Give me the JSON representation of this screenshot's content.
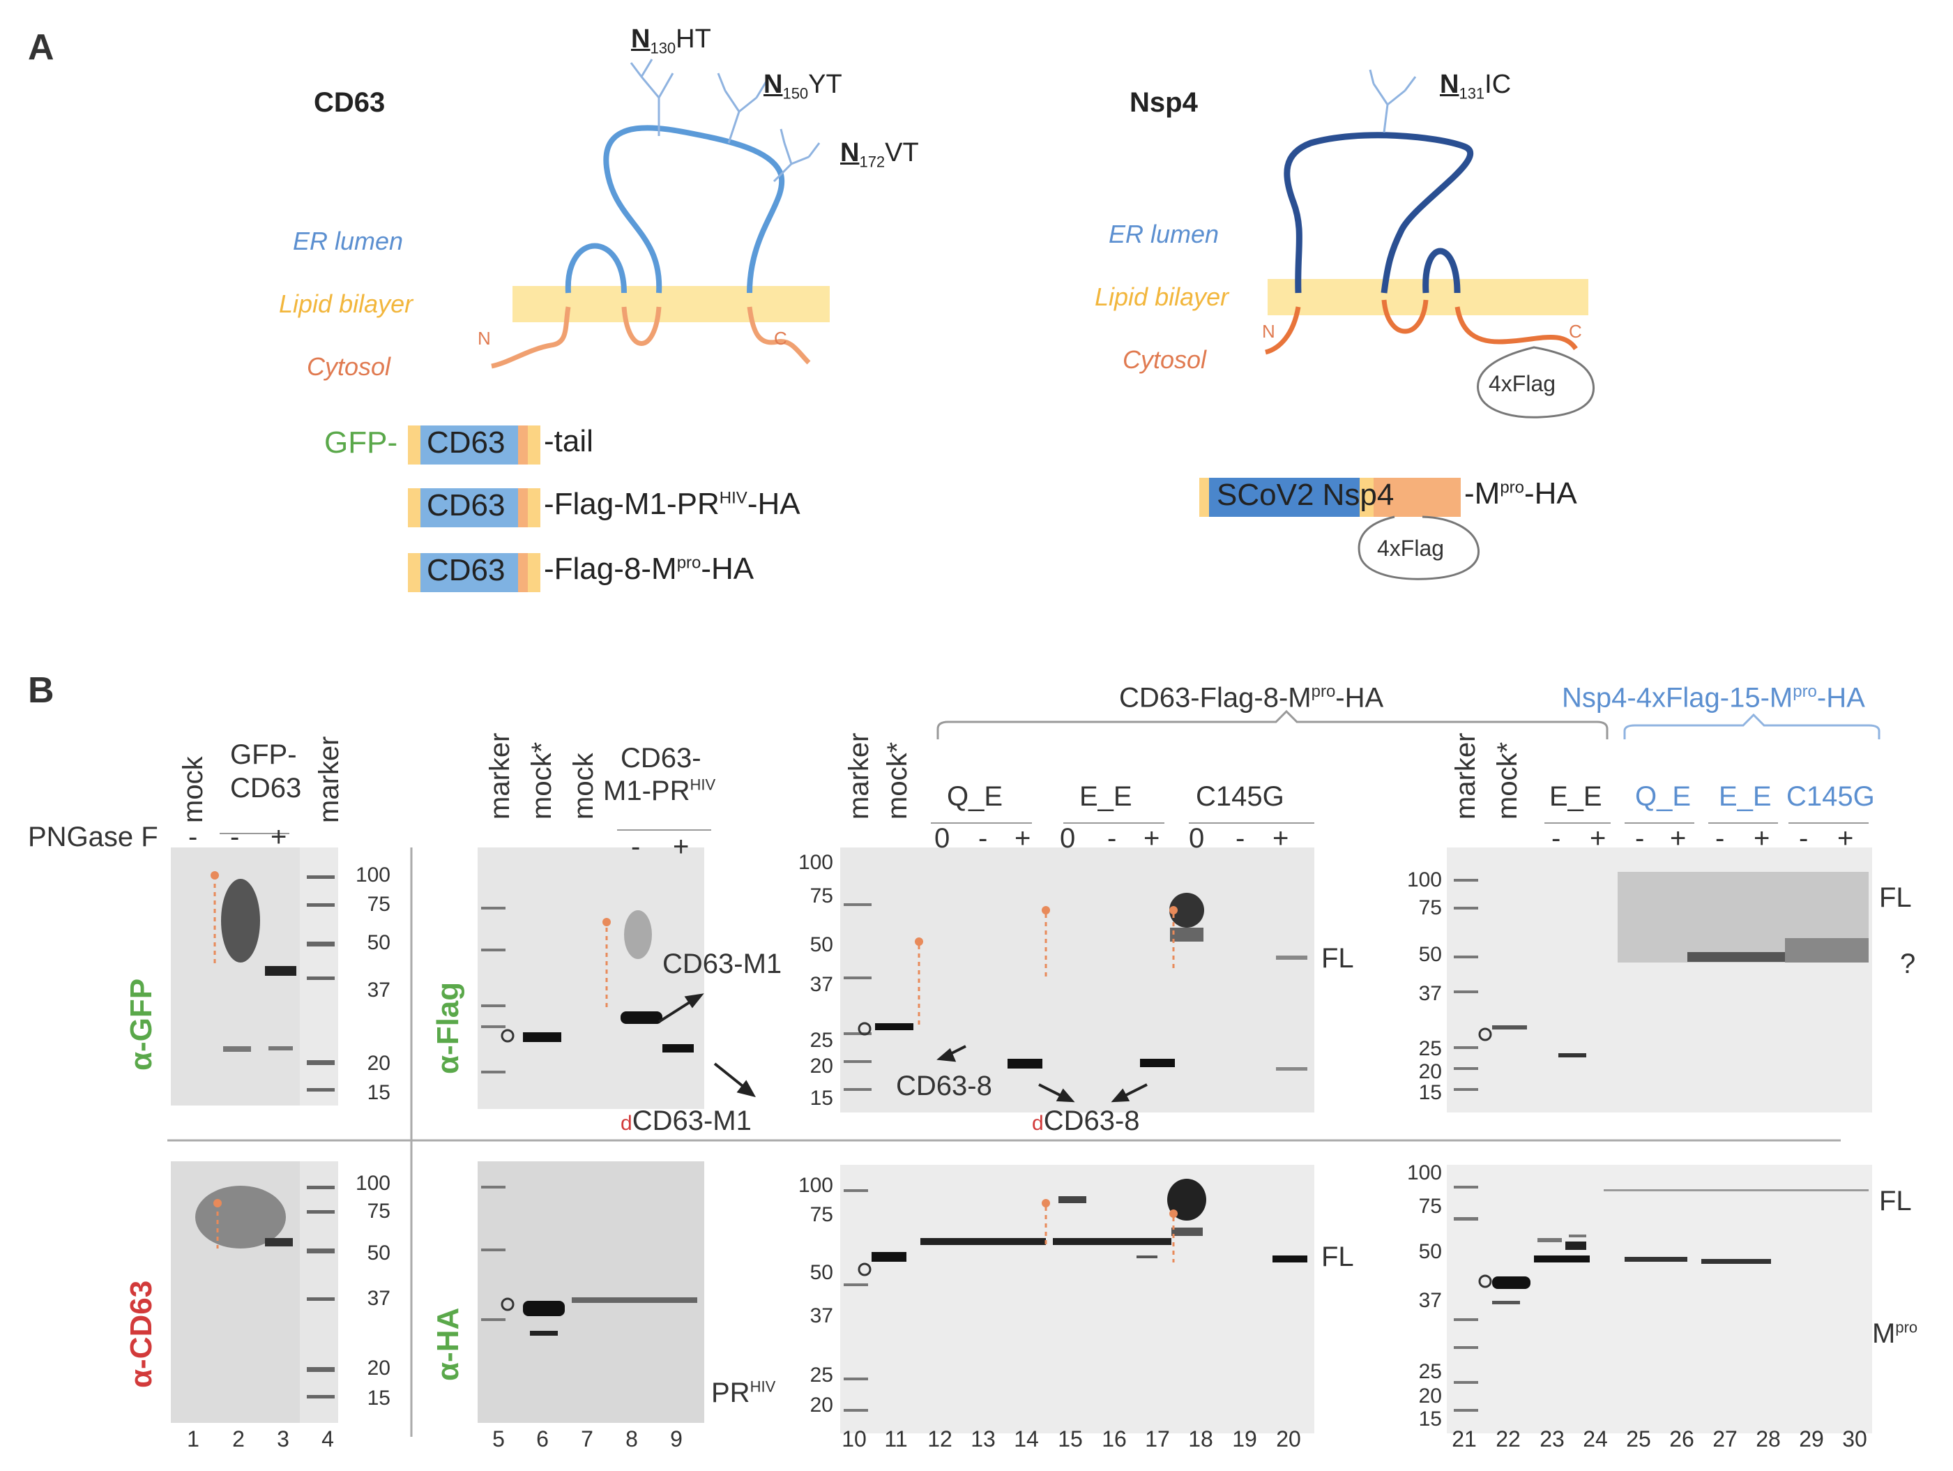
{
  "panel_a": {
    "letter": "A",
    "cd63": {
      "name": "CD63",
      "glyc1": {
        "aa": "N",
        "pos": "130",
        "rest": "HT"
      },
      "glyc2": {
        "aa": "N",
        "pos": "150",
        "rest": "YT"
      },
      "glyc3": {
        "aa": "N",
        "pos": "172",
        "rest": "VT"
      },
      "er_lumen": "ER lumen",
      "lipid": "Lipid bilayer",
      "cytosol": "Cytosol",
      "n_term": "N",
      "c_term": "C"
    },
    "nsp4": {
      "name": "Nsp4",
      "glyc1": {
        "aa": "N",
        "pos": "131",
        "rest": "IC"
      },
      "er_lumen": "ER lumen",
      "lipid": "Lipid bilayer",
      "cytosol": "Cytosol",
      "n_term": "N",
      "c_term": "C",
      "flag_tag": "4xFlag"
    },
    "constructs": {
      "c1_prefix": "GFP-",
      "c1_box": "CD63",
      "c1_suffix": "-tail",
      "c2_box": "CD63",
      "c2_suffix_a": "-Flag-M1-PR",
      "c2_sup": "HIV",
      "c2_suffix_b": "-HA",
      "c3_box": "CD63",
      "c3_suffix_a": "-Flag-8-M",
      "c3_sup": "pro",
      "c3_suffix_b": "-HA",
      "c4_box": "SCoV2 Nsp4",
      "c4_suffix_a": "-M",
      "c4_sup": "pro",
      "c4_suffix_b": "-HA",
      "c4_flag": "4xFlag"
    }
  },
  "panel_b": {
    "letter": "B",
    "pngase": "PNGase F",
    "group_cd63": {
      "a": "CD63-Flag-8-M",
      "sup": "pro",
      "b": "-HA"
    },
    "group_nsp4": {
      "a": "Nsp4-4xFlag-15-M",
      "sup": "pro",
      "b": "-HA"
    },
    "blot1": {
      "lanes": [
        "mock",
        "GFP-\nCD63",
        "marker"
      ],
      "signs": [
        "-",
        "-",
        "+"
      ],
      "mw_top": [
        "100",
        "75",
        "50",
        "37",
        "20",
        "15"
      ],
      "mw_bottom": [
        "100",
        "75",
        "50",
        "37",
        "20",
        "15"
      ],
      "ab_top": "α-GFP",
      "ab_bottom": "α-CD63",
      "lane_nums": [
        "1",
        "2",
        "3",
        "4"
      ]
    },
    "blot2": {
      "lanes": [
        "marker",
        "mock*",
        "mock"
      ],
      "group": "CD63-",
      "group2": "M1-PR",
      "group2_sup": "HIV",
      "signs": [
        "-",
        "+"
      ],
      "ab_top": "α-Flag",
      "ab_bottom": "α-HA",
      "band_a": "CD63-M1",
      "band_b_prefix": "d",
      "band_b": "CD63-M1",
      "band_pr": "PR",
      "band_pr_sup": "HIV",
      "lane_nums": [
        "5",
        "6",
        "7",
        "8",
        "9"
      ]
    },
    "blot3": {
      "lanes": [
        "marker",
        "mock*"
      ],
      "groups": [
        "Q_E",
        "E_E",
        "C145G"
      ],
      "signs": [
        "0",
        "-",
        "+",
        "0",
        "-",
        "+",
        "0",
        "-",
        "+"
      ],
      "mw_top": [
        "100",
        "75",
        "50",
        "37",
        "25",
        "20",
        "15"
      ],
      "mw_bottom": [
        "100",
        "75",
        "50",
        "37",
        "25",
        "20"
      ],
      "fl": "FL",
      "band_cd638": "CD63-8",
      "band_d_prefix": "d",
      "band_d": "CD63-8",
      "lane_nums": [
        "10",
        "11",
        "12",
        "13",
        "14",
        "15",
        "16",
        "17",
        "18",
        "19",
        "20"
      ]
    },
    "blot4": {
      "lanes": [
        "marker",
        "mock*"
      ],
      "groups": [
        "E_E",
        "Q_E",
        "E_E",
        "C145G"
      ],
      "signs": [
        "-",
        "+",
        "-",
        "+",
        "-",
        "+",
        "-",
        "+"
      ],
      "mw_top": [
        "100",
        "75",
        "50",
        "37",
        "25",
        "20",
        "15"
      ],
      "mw_bottom": [
        "100",
        "75",
        "50",
        "37",
        "25",
        "20",
        "15"
      ],
      "fl": "FL",
      "question": "?",
      "mpro": "M",
      "mpro_sup": "pro",
      "lane_nums": [
        "21",
        "22",
        "23",
        "24",
        "25",
        "26",
        "27",
        "28",
        "29",
        "30"
      ]
    }
  }
}
